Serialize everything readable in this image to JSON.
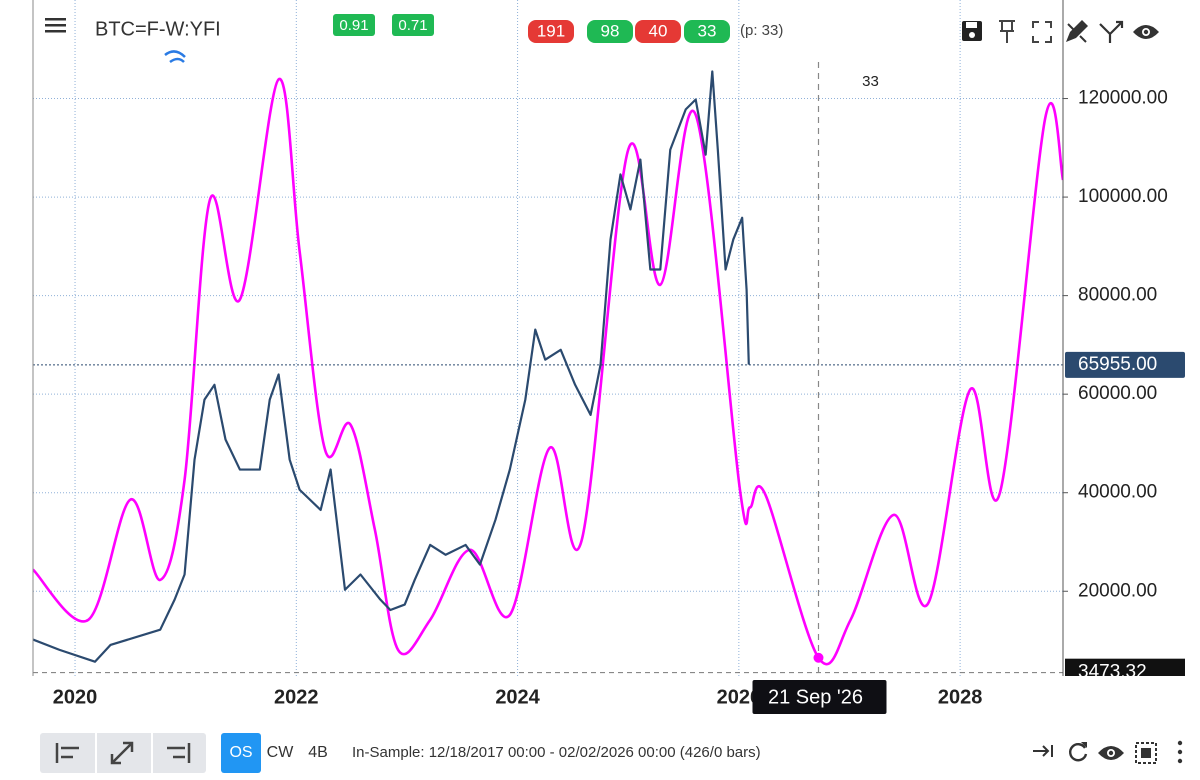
{
  "toolbar": {
    "symbol": "BTC=F-W:YFI",
    "score_badges": [
      {
        "value": 0.91,
        "color": "#1fb954"
      },
      {
        "value": 0.71,
        "color": "#1fb954"
      }
    ],
    "count_badges": [
      {
        "value": 191,
        "color": "#e53935"
      },
      {
        "value": 98,
        "color": "#1fb954"
      },
      {
        "value": 40,
        "color": "#e53935"
      },
      {
        "value": 33,
        "color": "#1fb954"
      }
    ],
    "period": "(p: 33)"
  },
  "chart_data": {
    "type": "line",
    "xlim": [
      2019.62,
      2028.93
    ],
    "ylim": [
      2800,
      140000
    ],
    "xticks": [
      2020,
      2022,
      2024,
      2026,
      2028
    ],
    "yticks": [
      {
        "value": 20000,
        "label": "20000.00"
      },
      {
        "value": 40000,
        "label": "40000.00"
      },
      {
        "value": 60000,
        "label": "60000.00"
      },
      {
        "value": 80000,
        "label": "80000.00"
      },
      {
        "value": 100000,
        "label": "100000.00"
      },
      {
        "value": 120000,
        "label": "120000.00"
      }
    ],
    "grid": true,
    "series": [
      {
        "color": "#2b4a6f",
        "x": [
          2019.62,
          2019.86,
          2020.18,
          2020.32,
          2020.77,
          2020.9,
          2020.99,
          2021.08,
          2021.17,
          2021.26,
          2021.36,
          2021.49,
          2021.67,
          2021.76,
          2021.84,
          2021.94,
          2022.03,
          2022.22,
          2022.31,
          2022.44,
          2022.58,
          2022.76,
          2022.85,
          2022.98,
          2023.07,
          2023.21,
          2023.35,
          2023.53,
          2023.66,
          2023.8,
          2023.93,
          2024.07,
          2024.16,
          2024.25,
          2024.39,
          2024.52,
          2024.66,
          2024.75,
          2024.84,
          2024.93,
          2025.02,
          2025.11,
          2025.2,
          2025.29,
          2025.38,
          2025.52,
          2025.61,
          2025.7,
          2025.76,
          2025.81,
          2025.88,
          2025.95,
          2026.03,
          2026.07,
          2026.09
        ],
        "values": [
          10200,
          8100,
          5700,
          9100,
          12200,
          18300,
          23400,
          46700,
          58900,
          61900,
          50800,
          44700,
          44700,
          58900,
          64000,
          46700,
          40600,
          36500,
          44700,
          20300,
          23400,
          18300,
          16200,
          17300,
          22300,
          29400,
          27400,
          29400,
          25400,
          34500,
          44700,
          58900,
          73100,
          67000,
          69000,
          61900,
          55800,
          66000,
          91400,
          104600,
          97500,
          107600,
          85300,
          85300,
          109600,
          117800,
          119800,
          108600,
          125500,
          109600,
          85300,
          91400,
          95800,
          81200,
          66000
        ]
      },
      {
        "color": "#ff00ff",
        "x": [
          2019.62,
          2020.12,
          2020.5,
          2020.77,
          2020.99,
          2021.22,
          2021.49,
          2021.84,
          2022.03,
          2022.26,
          2022.49,
          2022.71,
          2022.92,
          2023.21,
          2023.57,
          2023.93,
          2024.29,
          2024.58,
          2025.0,
          2025.29,
          2025.61,
          2026.01,
          2026.1,
          2026.24,
          2026.72,
          2027.01,
          2027.4,
          2027.71,
          2028.09,
          2028.36,
          2028.77,
          2028.93
        ],
        "values": [
          24400,
          14200,
          38600,
          22300,
          42600,
          99500,
          79200,
          123900,
          89000,
          48700,
          53800,
          32500,
          8100,
          14200,
          28400,
          15200,
          49100,
          30400,
          109600,
          82200,
          116700,
          40600,
          37000,
          39600,
          6500,
          14200,
          35500,
          17500,
          60900,
          40000,
          116100,
          103500
        ]
      }
    ],
    "last_price": {
      "value": 65955,
      "label": "65955.00",
      "color": "#2b4a6f"
    },
    "min_price": {
      "value": 3473.32,
      "label": "3473.32"
    },
    "crosshair": {
      "x": 2026.72,
      "label": "21 Sep '26",
      "count": 33
    }
  },
  "bottom_bar": {
    "modes": [
      "OS",
      "CW",
      "4B"
    ],
    "status": "In-Sample: 12/18/2017 00:00 - 02/02/2026 00:00 (426/0 bars)"
  }
}
